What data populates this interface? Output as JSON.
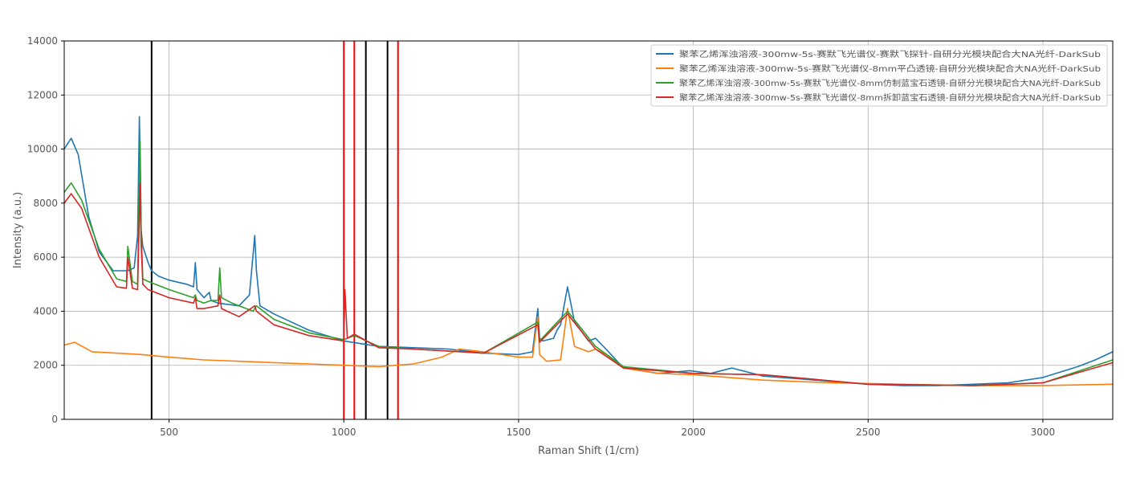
{
  "chart_data": {
    "type": "line",
    "title": "",
    "xlabel": "Raman Shift (1/cm)",
    "ylabel": "Intensity (a.u.)",
    "xlim": [
      200,
      3200
    ],
    "ylim": [
      0,
      14000
    ],
    "xticks": [
      500,
      1000,
      1500,
      2000,
      2500,
      3000
    ],
    "yticks": [
      0,
      2000,
      4000,
      6000,
      8000,
      10000,
      12000,
      14000
    ],
    "grid": true,
    "legend_position": "top-right",
    "vlines": [
      {
        "x": 450,
        "color": "#000000"
      },
      {
        "x": 1000,
        "color": "#ff0000"
      },
      {
        "x": 1030,
        "color": "#ff0000"
      },
      {
        "x": 1063,
        "color": "#000000"
      },
      {
        "x": 1125,
        "color": "#000000"
      },
      {
        "x": 1155,
        "color": "#ff0000"
      }
    ],
    "series": [
      {
        "name": "聚苯乙烯浑浊溶液-300mw-5s-赛默飞光谱仪-赛默飞探针-自研分光模块配合大NA光纤-DarkSub",
        "color": "#1f77b4",
        "x": [
          200,
          220,
          240,
          270,
          300,
          340,
          380,
          400,
          410,
          415,
          418,
          420,
          425,
          430,
          440,
          450,
          470,
          500,
          550,
          570,
          575,
          580,
          600,
          615,
          620,
          640,
          700,
          730,
          745,
          750,
          760,
          800,
          900,
          1000,
          1050,
          1100,
          1200,
          1300,
          1400,
          1500,
          1540,
          1555,
          1560,
          1570,
          1600,
          1610,
          1620,
          1640,
          1660,
          1700,
          1720,
          1750,
          1800,
          1900,
          1990,
          2050,
          2110,
          2200,
          2300,
          2400,
          2500,
          2600,
          2700,
          2800,
          2900,
          3000,
          3050,
          3100,
          3150,
          3200
        ],
        "y": [
          10000,
          10400,
          9800,
          7500,
          6200,
          5500,
          5500,
          5600,
          6800,
          11200,
          9000,
          7000,
          6400,
          6200,
          5800,
          5500,
          5300,
          5150,
          5000,
          4900,
          5800,
          4800,
          4500,
          4700,
          4400,
          4300,
          4200,
          4600,
          6800,
          5500,
          4200,
          3900,
          3300,
          2900,
          2800,
          2700,
          2650,
          2600,
          2450,
          2400,
          2500,
          4100,
          3000,
          2900,
          3000,
          3300,
          3500,
          4900,
          3600,
          2900,
          3000,
          2600,
          1900,
          1700,
          1800,
          1700,
          1900,
          1600,
          1500,
          1400,
          1300,
          1250,
          1250,
          1300,
          1350,
          1550,
          1750,
          1950,
          2200,
          2500
        ]
      },
      {
        "name": "聚苯乙烯浑浊溶液-300mw-5s-赛默飞光谱仪-8mm平凸透镜-自研分光模块配合大NA光纤-DarkSub",
        "color": "#ff7f0e",
        "x": [
          200,
          230,
          280,
          350,
          420,
          500,
          600,
          700,
          800,
          900,
          1000,
          1100,
          1200,
          1280,
          1330,
          1400,
          1500,
          1540,
          1555,
          1560,
          1580,
          1620,
          1640,
          1660,
          1700,
          1720,
          1750,
          1800,
          1900,
          2000,
          2200,
          2400,
          2600,
          2800,
          3000,
          3200
        ],
        "y": [
          2750,
          2850,
          2500,
          2450,
          2400,
          2300,
          2200,
          2150,
          2100,
          2050,
          2000,
          1950,
          2050,
          2300,
          2600,
          2500,
          2300,
          2300,
          3800,
          2400,
          2150,
          2200,
          4100,
          2700,
          2500,
          2600,
          2400,
          1900,
          1700,
          1650,
          1450,
          1350,
          1300,
          1250,
          1250,
          1300
        ]
      },
      {
        "name": "聚苯乙烯浑浊溶液-300mw-5s-赛默飞光谱仪-8mm仿制蓝宝石透镜-自研分光模块配合大NA光纤-DarkSub",
        "color": "#2ca02c",
        "x": [
          200,
          220,
          250,
          300,
          350,
          378,
          382,
          395,
          410,
          417,
          420,
          425,
          440,
          500,
          570,
          575,
          580,
          600,
          620,
          640,
          645,
          650,
          680,
          740,
          750,
          800,
          900,
          1000,
          1030,
          1100,
          1200,
          1400,
          1555,
          1560,
          1640,
          1720,
          1800,
          2000,
          2200,
          2500,
          2800,
          3000,
          3200
        ],
        "y": [
          8400,
          8750,
          8100,
          6300,
          5200,
          5100,
          6400,
          5100,
          5000,
          10300,
          7000,
          5200,
          5100,
          4800,
          4500,
          4600,
          4400,
          4300,
          4400,
          4400,
          5600,
          4500,
          4300,
          4000,
          4200,
          3700,
          3200,
          2950,
          3100,
          2700,
          2600,
          2450,
          3600,
          2900,
          4000,
          2700,
          1950,
          1700,
          1650,
          1300,
          1250,
          1350,
          2200
        ]
      },
      {
        "name": "聚苯乙烯浑浊溶液-300mw-5s-赛默飞光谱仪-8mm拆卸蓝宝石透镜-自研分光模块配合大NA光纤-DarkSub",
        "color": "#d62728",
        "x": [
          200,
          220,
          250,
          300,
          350,
          378,
          382,
          395,
          410,
          417,
          420,
          425,
          440,
          500,
          570,
          575,
          580,
          600,
          620,
          640,
          645,
          650,
          700,
          745,
          750,
          800,
          900,
          1000,
          1003,
          1010,
          1030,
          1100,
          1200,
          1400,
          1555,
          1560,
          1640,
          1720,
          1800,
          2000,
          2200,
          2500,
          2800,
          3000,
          3200
        ],
        "y": [
          8000,
          8350,
          7800,
          6000,
          4900,
          4850,
          6000,
          4850,
          4800,
          8700,
          6500,
          5000,
          4800,
          4500,
          4300,
          4500,
          4100,
          4100,
          4150,
          4200,
          4600,
          4100,
          3800,
          4200,
          4000,
          3500,
          3100,
          2900,
          4800,
          3000,
          3150,
          2650,
          2600,
          2450,
          3500,
          2850,
          3900,
          2600,
          1900,
          1700,
          1650,
          1300,
          1250,
          1350,
          2100
        ]
      }
    ]
  }
}
